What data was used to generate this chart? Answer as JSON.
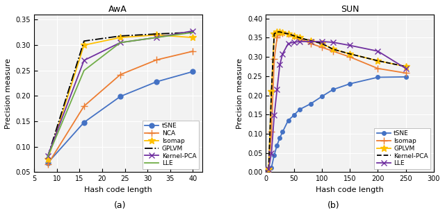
{
  "awa": {
    "title": "AwA",
    "xlabel": "Hash code length",
    "ylabel": "Precision measure",
    "xlim": [
      5,
      42
    ],
    "ylim": [
      0.05,
      0.36
    ],
    "xticks": [
      5,
      10,
      15,
      20,
      25,
      30,
      35,
      40
    ],
    "yticks": [
      0.05,
      0.1,
      0.15,
      0.2,
      0.25,
      0.3,
      0.35
    ],
    "series": [
      {
        "name": "tSNE",
        "x": [
          8,
          16,
          24,
          32,
          40
        ],
        "y": [
          0.068,
          0.148,
          0.199,
          0.228,
          0.248
        ],
        "color": "#4472c4",
        "marker": "o",
        "linestyle": "-",
        "markersize": 5
      },
      {
        "name": "NCA",
        "x": [
          8,
          16,
          24,
          32,
          40
        ],
        "y": [
          0.065,
          0.18,
          0.242,
          0.271,
          0.288
        ],
        "color": "#ed7d31",
        "marker": "+",
        "linestyle": "-",
        "markersize": 7
      },
      {
        "name": "Isomap",
        "x": [
          8,
          16,
          24,
          32,
          40
        ],
        "y": [
          0.075,
          0.3,
          0.315,
          0.32,
          0.315
        ],
        "color": "#ffc000",
        "marker": "*",
        "linestyle": "-",
        "markersize": 7
      },
      {
        "name": "GPLVM",
        "x": [
          8,
          16,
          24,
          32,
          40
        ],
        "y": [
          0.08,
          0.308,
          0.318,
          0.322,
          0.325
        ],
        "color": "#000000",
        "marker": null,
        "linestyle": "-.",
        "markersize": 5
      },
      {
        "name": "Kernel-PCA",
        "x": [
          8,
          16,
          24,
          32,
          40
        ],
        "y": [
          0.082,
          0.27,
          0.305,
          0.315,
          0.328
        ],
        "color": "#7030a0",
        "marker": "x",
        "linestyle": "-",
        "markersize": 6
      },
      {
        "name": "LLE",
        "x": [
          8,
          16,
          24,
          32,
          40
        ],
        "y": [
          0.08,
          0.25,
          0.305,
          0.315,
          0.325
        ],
        "color": "#70ad47",
        "marker": null,
        "linestyle": "-",
        "markersize": 5
      }
    ],
    "legend_loc": "lower right"
  },
  "sun": {
    "title": "SUN",
    "xlabel": "Hash code length",
    "ylabel": "Precision measure",
    "xlim": [
      0,
      300
    ],
    "ylim": [
      0.0,
      0.41
    ],
    "xticks": [
      0,
      50,
      100,
      150,
      200,
      250,
      300
    ],
    "yticks": [
      0.0,
      0.05,
      0.1,
      0.15,
      0.2,
      0.25,
      0.3,
      0.35,
      0.4
    ],
    "series": [
      {
        "name": "tSNE",
        "x": [
          5,
          10,
          15,
          20,
          25,
          30,
          40,
          50,
          60,
          80,
          100,
          120,
          150,
          200,
          250
        ],
        "y": [
          0.008,
          0.012,
          0.045,
          0.07,
          0.09,
          0.105,
          0.135,
          0.148,
          0.163,
          0.178,
          0.197,
          0.215,
          0.23,
          0.247,
          0.248
        ],
        "color": "#4472c4",
        "marker": "o",
        "linestyle": "-",
        "markersize": 4
      },
      {
        "name": "Isomap",
        "x": [
          5,
          10,
          15,
          20,
          25,
          30,
          40,
          50,
          60,
          80,
          100,
          120,
          150,
          200,
          250
        ],
        "y": [
          0.008,
          0.105,
          0.295,
          0.35,
          0.362,
          0.362,
          0.36,
          0.355,
          0.348,
          0.335,
          0.325,
          0.315,
          0.3,
          0.27,
          0.258
        ],
        "color": "#ed7d31",
        "marker": "+",
        "linestyle": "-",
        "markersize": 7
      },
      {
        "name": "GPLVM",
        "x": [
          5,
          10,
          15,
          20,
          25,
          30,
          40,
          50,
          60,
          80,
          100,
          120,
          150,
          200,
          250
        ],
        "y": [
          0.008,
          0.21,
          0.36,
          0.365,
          0.365,
          0.363,
          0.36,
          0.355,
          0.35,
          0.342,
          0.335,
          0.32,
          0.308,
          0.29,
          0.275
        ],
        "color": "#ffc000",
        "marker": "*",
        "linestyle": "-",
        "markersize": 7
      },
      {
        "name": "Kernel-PCA",
        "x": [
          5,
          10,
          15,
          20,
          25,
          30,
          40,
          50,
          60,
          80,
          100,
          120,
          150,
          200,
          250
        ],
        "y": [
          0.008,
          0.21,
          0.36,
          0.365,
          0.365,
          0.363,
          0.36,
          0.355,
          0.35,
          0.342,
          0.335,
          0.32,
          0.308,
          0.29,
          0.275
        ],
        "color": "#000000",
        "marker": null,
        "linestyle": "--",
        "markersize": 5
      },
      {
        "name": "LLE",
        "x": [
          5,
          10,
          15,
          20,
          25,
          30,
          40,
          50,
          60,
          80,
          100,
          120,
          150,
          200,
          250
        ],
        "y": [
          0.008,
          0.05,
          0.148,
          0.215,
          0.28,
          0.308,
          0.335,
          0.338,
          0.34,
          0.34,
          0.34,
          0.338,
          0.33,
          0.315,
          0.27
        ],
        "color": "#7030a0",
        "marker": "x",
        "linestyle": "-",
        "markersize": 6
      }
    ],
    "legend_loc": "lower right"
  },
  "subtitle_a": "(a)",
  "subtitle_b": "(b)",
  "figure_background": "#ffffff",
  "axes_background": "#f2f2f2",
  "grid_color": "#ffffff",
  "font_size_title": 9,
  "font_size_axis": 8,
  "font_size_tick": 7,
  "font_size_legend": 6.5,
  "linewidth": 1.3
}
